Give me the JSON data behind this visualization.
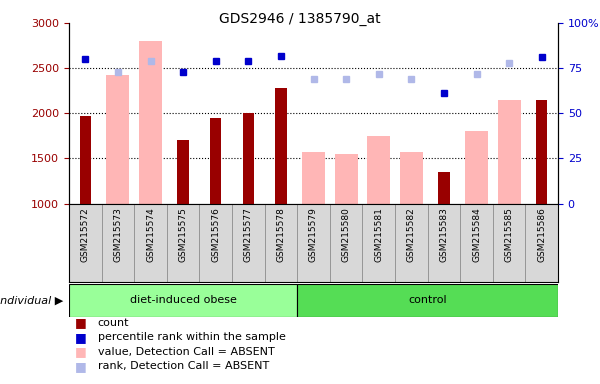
{
  "title": "GDS2946 / 1385790_at",
  "samples": [
    "GSM215572",
    "GSM215573",
    "GSM215574",
    "GSM215575",
    "GSM215576",
    "GSM215577",
    "GSM215578",
    "GSM215579",
    "GSM215580",
    "GSM215581",
    "GSM215582",
    "GSM215583",
    "GSM215584",
    "GSM215585",
    "GSM215586"
  ],
  "groups": [
    "diet-induced obese",
    "diet-induced obese",
    "diet-induced obese",
    "diet-induced obese",
    "diet-induced obese",
    "diet-induced obese",
    "diet-induced obese",
    "control",
    "control",
    "control",
    "control",
    "control",
    "control",
    "control",
    "control"
  ],
  "count_values": [
    1975,
    null,
    null,
    1700,
    1950,
    2000,
    2275,
    null,
    null,
    null,
    null,
    1350,
    null,
    null,
    2150
  ],
  "absent_values": [
    null,
    2425,
    2800,
    null,
    null,
    null,
    null,
    1575,
    1550,
    1750,
    1575,
    null,
    1800,
    2150,
    null
  ],
  "percentile_rank": [
    80,
    null,
    null,
    73,
    79,
    79,
    82,
    null,
    null,
    null,
    null,
    61,
    null,
    null,
    81
  ],
  "absent_rank": [
    null,
    73,
    79,
    null,
    null,
    null,
    null,
    69,
    69,
    72,
    69,
    null,
    72,
    78,
    null
  ],
  "ylim_left": [
    1000,
    3000
  ],
  "ylim_right": [
    0,
    100
  ],
  "yticks_left": [
    1000,
    1500,
    2000,
    2500,
    3000
  ],
  "yticks_right": [
    0,
    25,
    50,
    75,
    100
  ],
  "color_count": "#990000",
  "color_percentile": "#0000cc",
  "color_absent_value": "#ffb6b6",
  "color_absent_rank": "#b0b8e8",
  "plot_bg": "#ffffff",
  "tick_area_bg": "#d8d8d8",
  "group1_label": "diet-induced obese",
  "group2_label": "control",
  "group1_color": "#99ff99",
  "group2_color": "#55dd55",
  "legend_items": [
    {
      "label": "count",
      "color": "#990000"
    },
    {
      "label": "percentile rank within the sample",
      "color": "#0000cc"
    },
    {
      "label": "value, Detection Call = ABSENT",
      "color": "#ffb6b6"
    },
    {
      "label": "rank, Detection Call = ABSENT",
      "color": "#b0b8e8"
    }
  ]
}
